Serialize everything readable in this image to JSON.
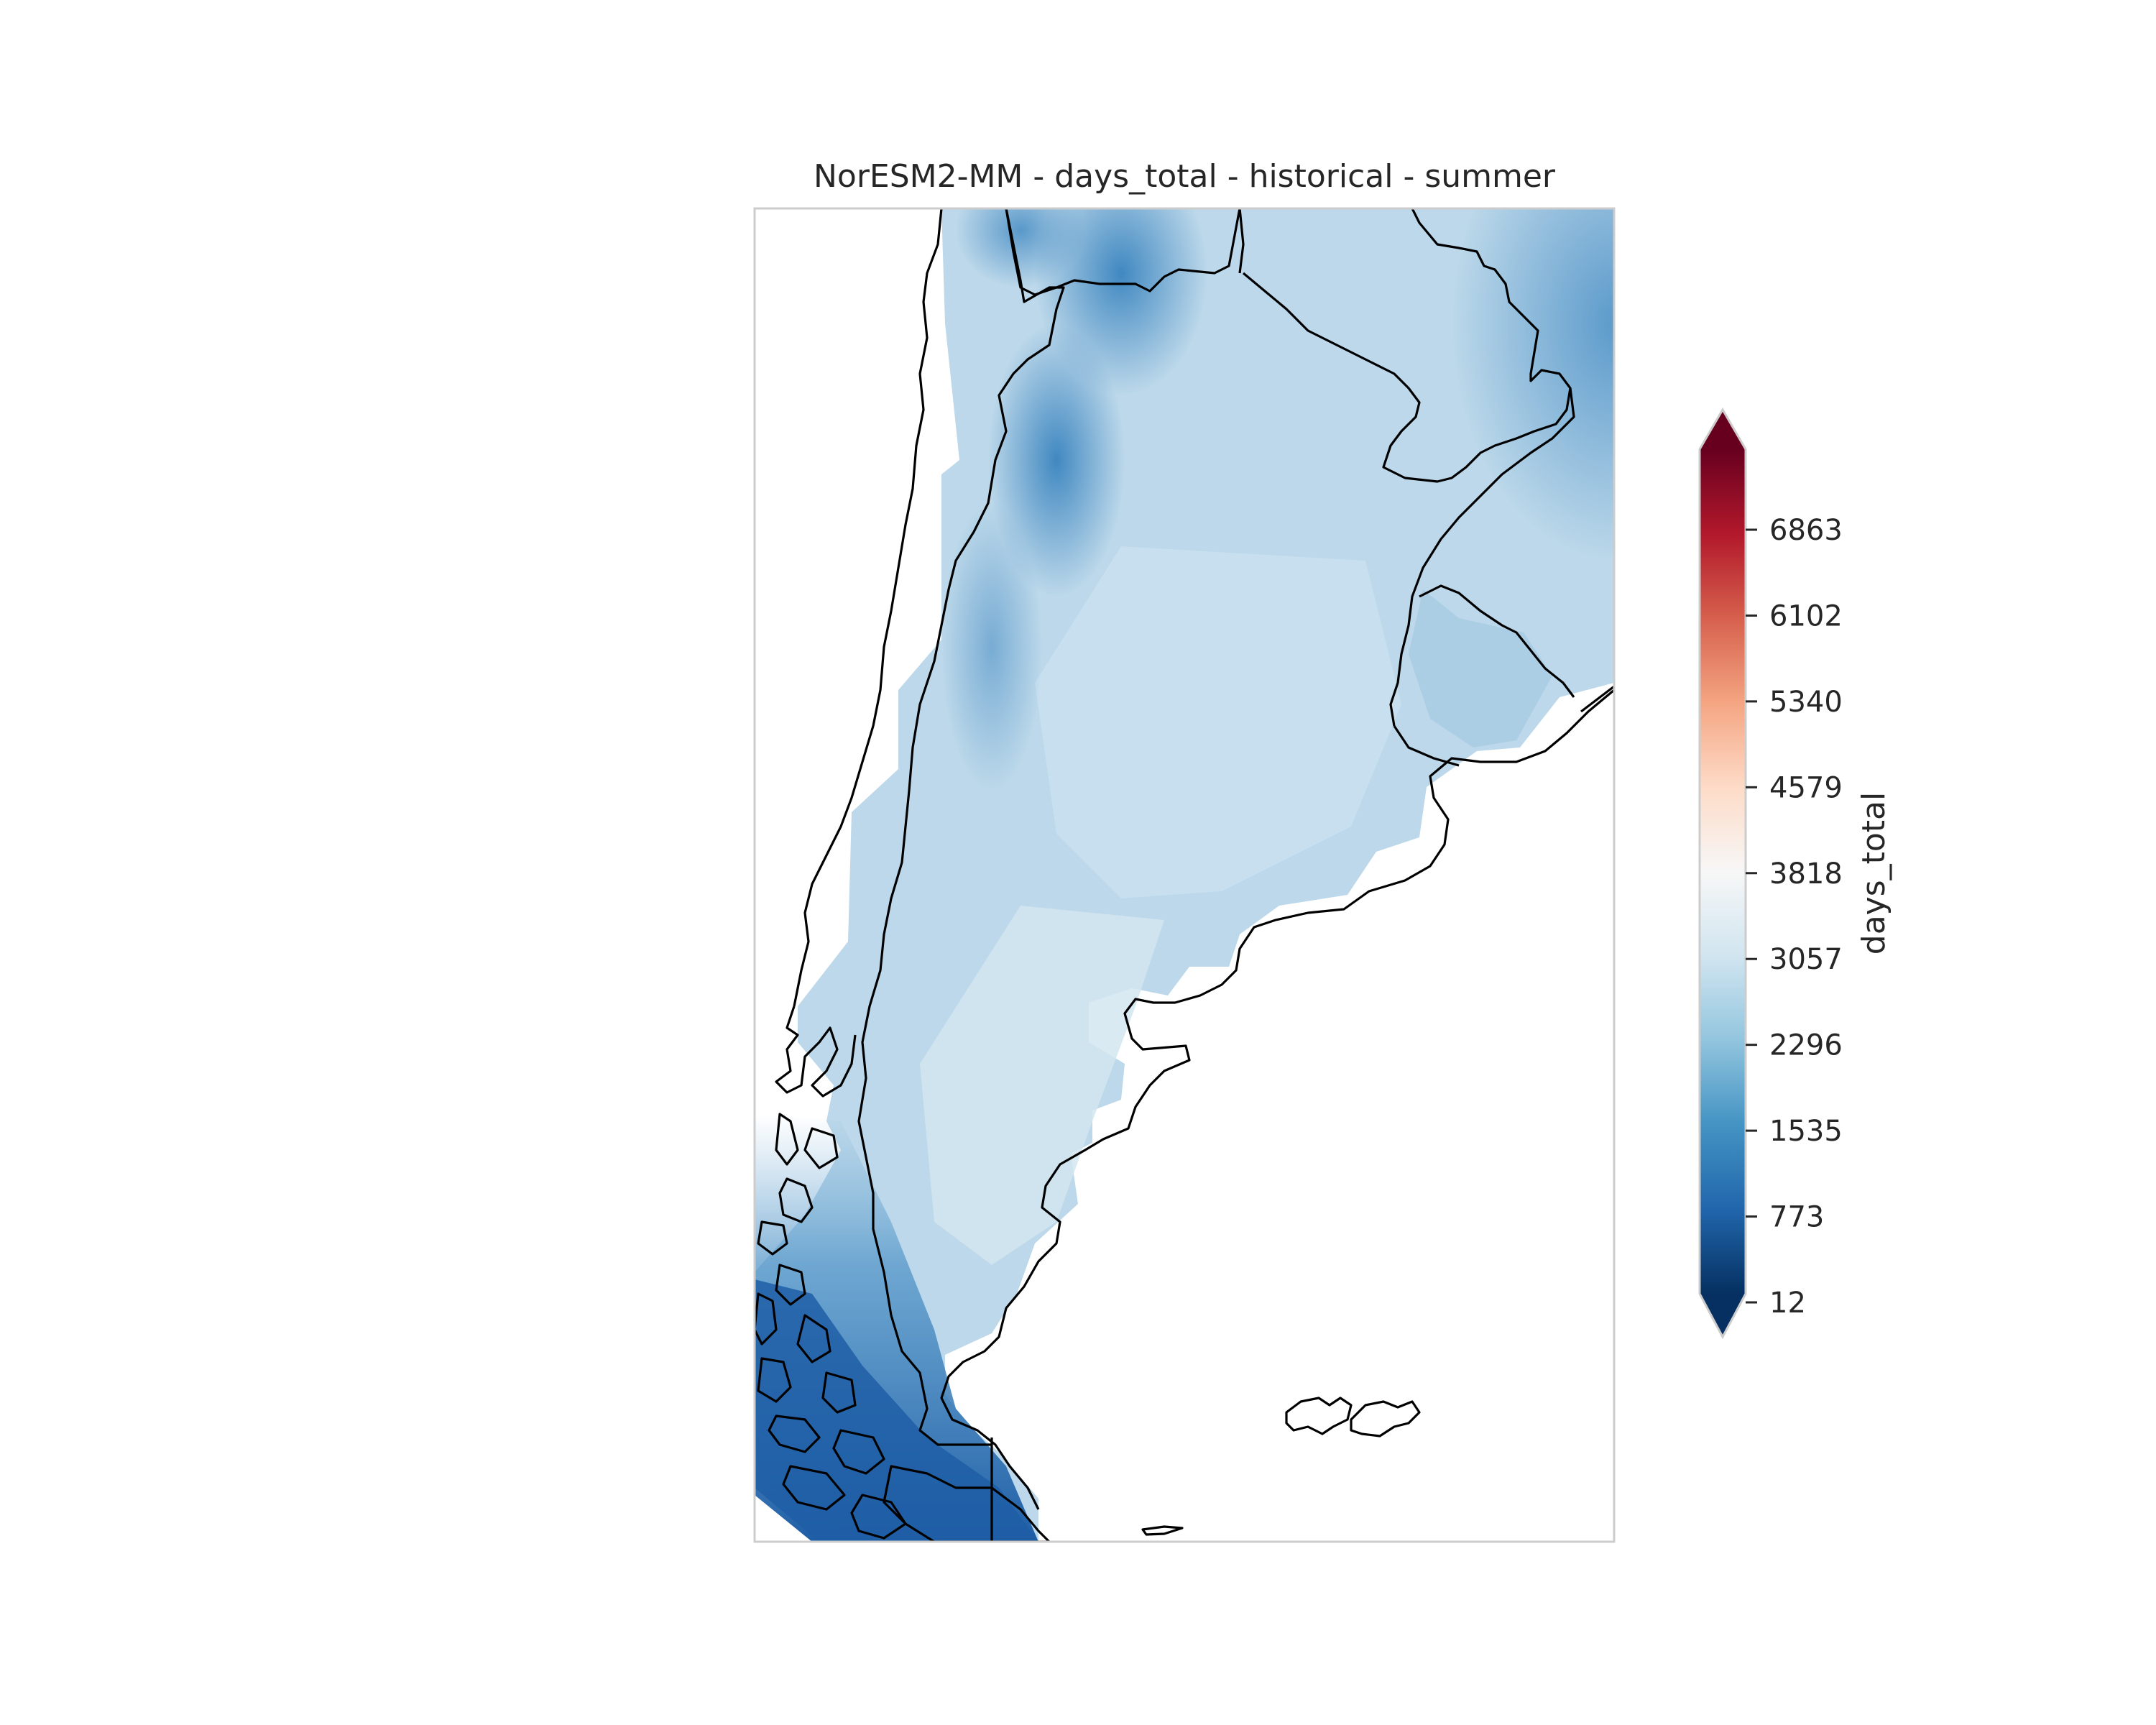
{
  "figure": {
    "title": "NorESM2-MM - days_total - historical - summer"
  },
  "colorbar": {
    "label": "days_total",
    "ticks": [
      "12",
      "773",
      "1535",
      "2296",
      "3057",
      "3818",
      "4579",
      "5340",
      "6102",
      "6863"
    ],
    "colors_low_to_high": [
      "#053061",
      "#2166ac",
      "#4393c3",
      "#92c5de",
      "#d1e5f0",
      "#f7f7f7",
      "#fddbc7",
      "#f4a582",
      "#d6604d",
      "#b2182b",
      "#67001f"
    ],
    "extend": "both"
  },
  "map": {
    "region": "Southern South America (Argentina, Chile, Uruguay, Falkland Islands)",
    "colormap": "RdBu_r",
    "field_colors": {
      "lowest_visible": "#1f5ea6",
      "low": "#3a84bf",
      "mid": "#8fbfdc",
      "typical": "#b9d7e8",
      "highest_visible": "#d3e6f1"
    }
  }
}
